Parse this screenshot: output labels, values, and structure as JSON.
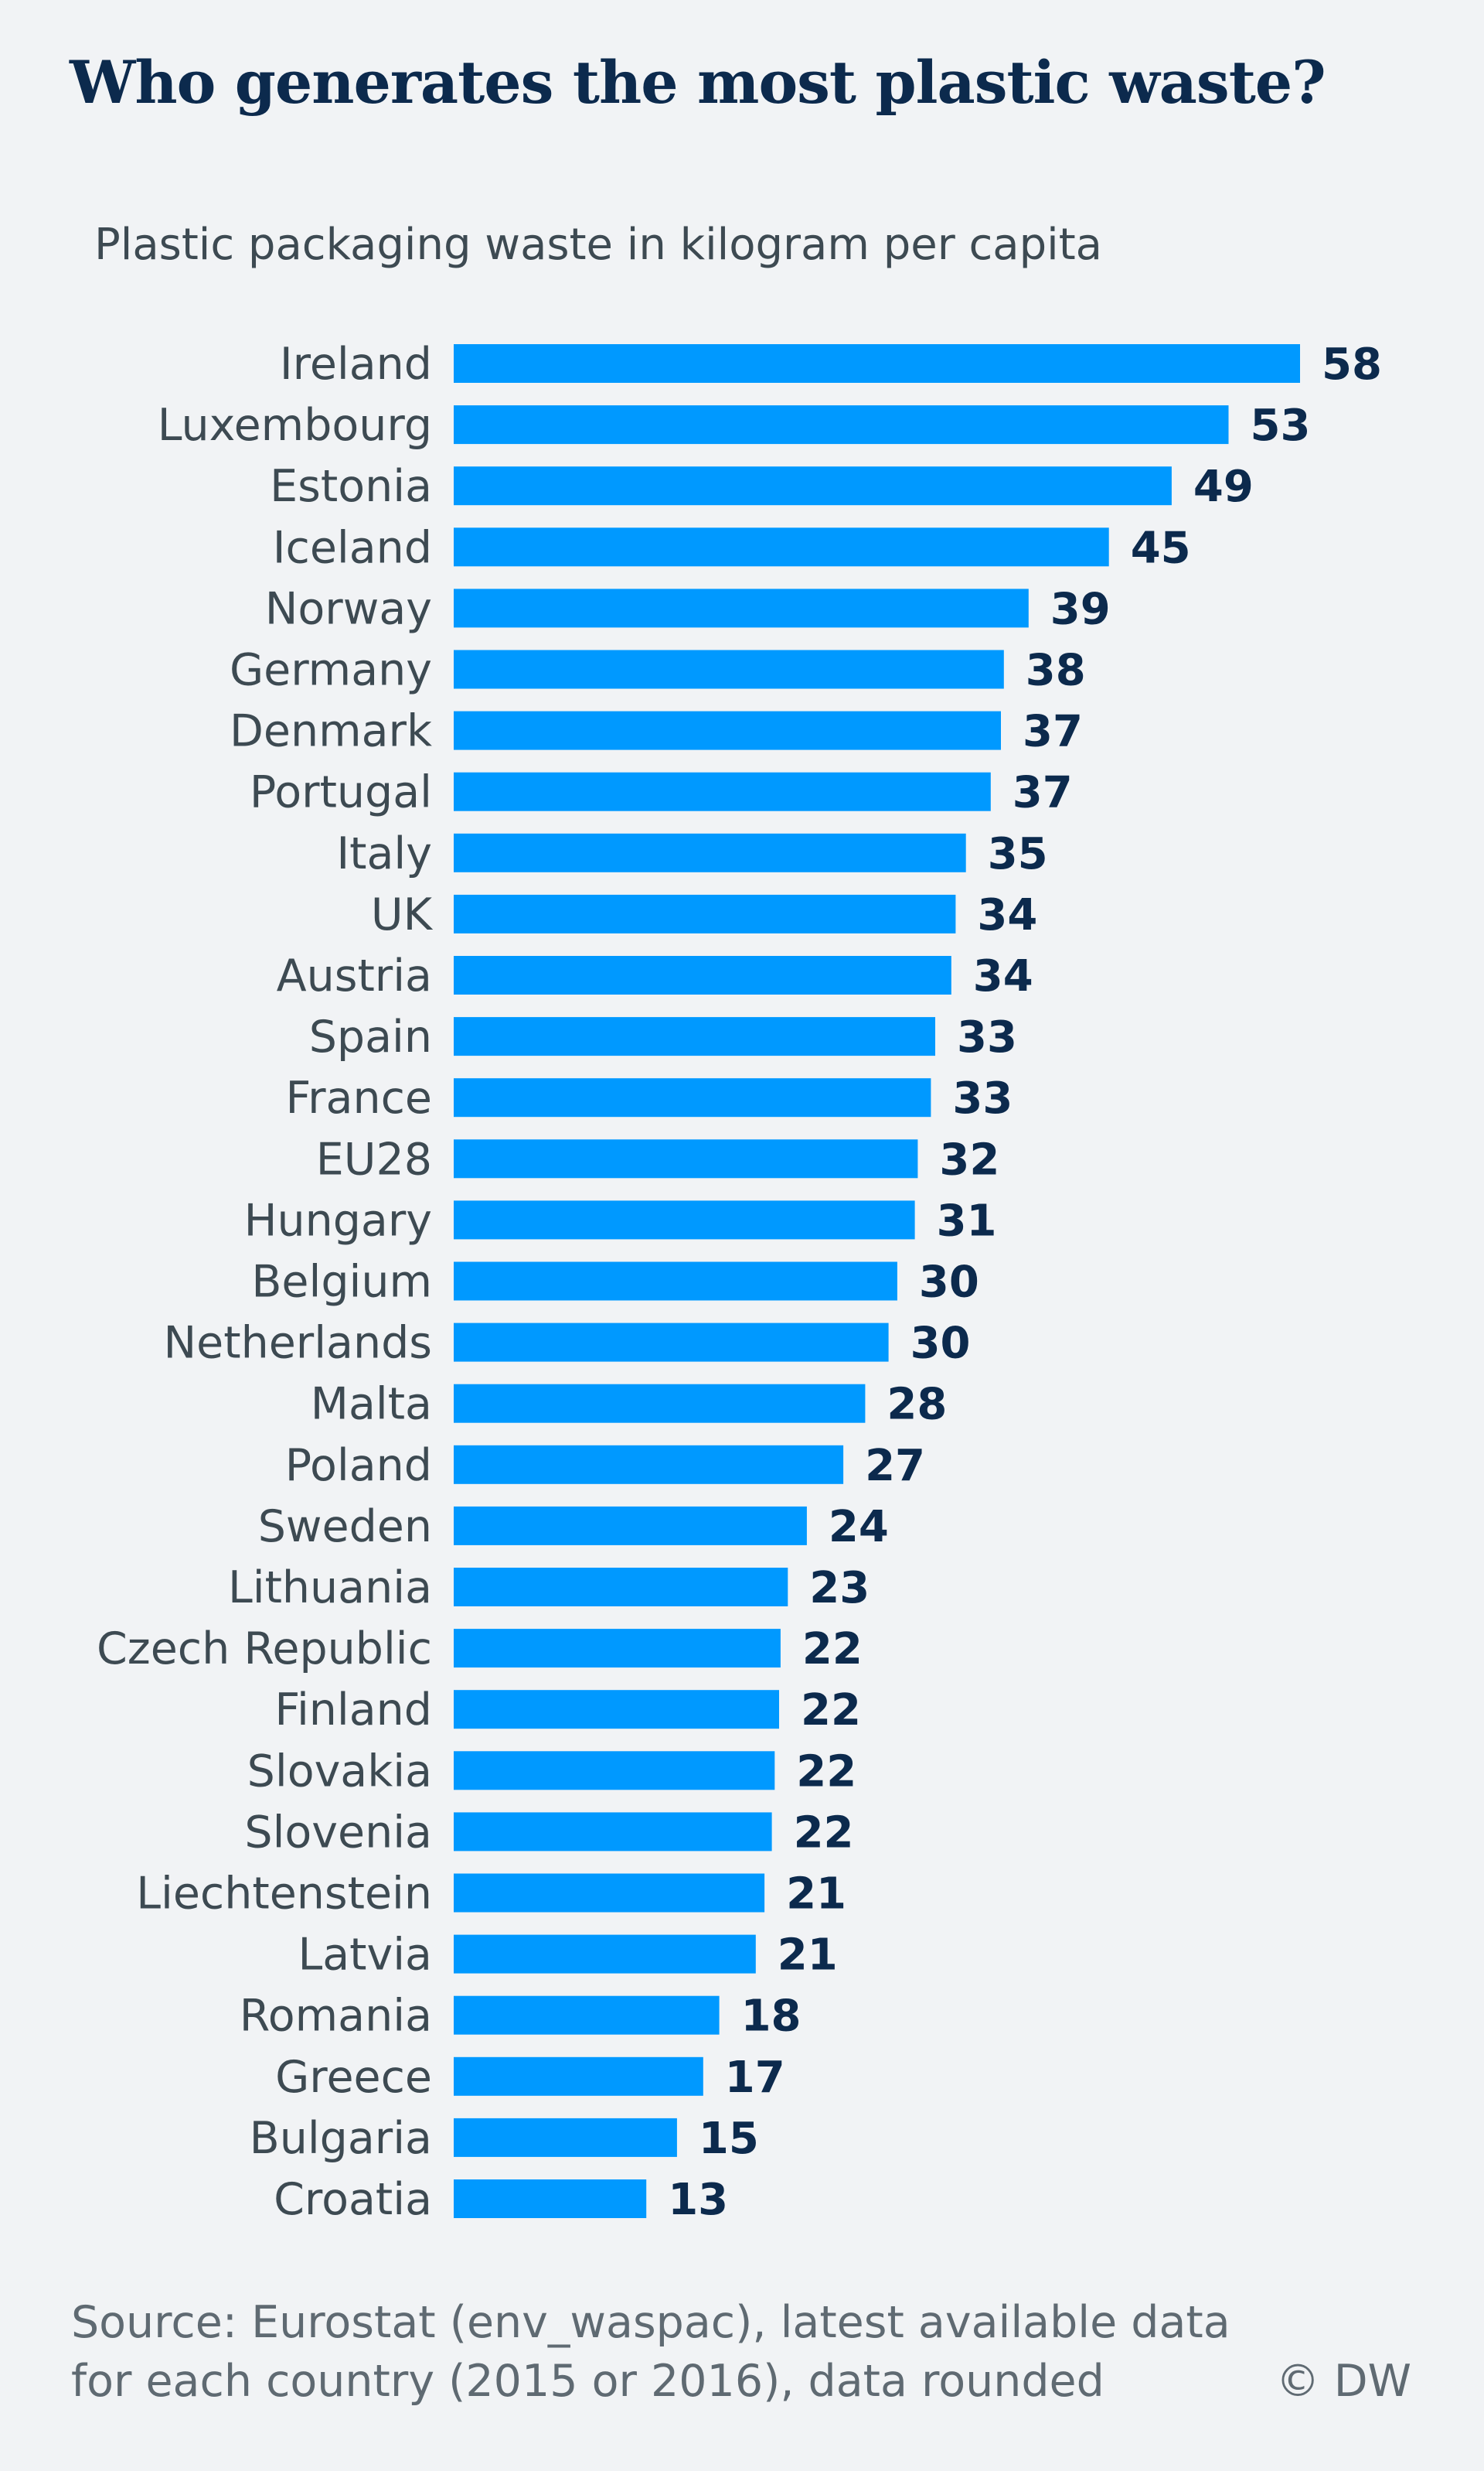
{
  "header": {
    "title": "Who generates the most plastic waste?",
    "subtitle": "Plastic packaging waste in kilogram per capita"
  },
  "footer": {
    "source_line1": "Source: Eurostat (env_waspac), latest available data",
    "source_line2": "for each country (2015 or 2016), data rounded",
    "credit": "© DW"
  },
  "colors": {
    "bar": "#0099ff",
    "title": "#0c2a4d",
    "value_label": "#0c2a4d",
    "category_label": "#3d4a52",
    "background": "#f1f3f5"
  },
  "chart_data": {
    "type": "bar",
    "orientation": "horizontal",
    "title": "Who generates the most plastic waste?",
    "subtitle": "Plastic packaging waste in kilogram per capita",
    "xlabel": "",
    "ylabel": "",
    "grid": false,
    "legend": "none",
    "categories": [
      "Ireland",
      "Luxembourg",
      "Estonia",
      "Iceland",
      "Norway",
      "Germany",
      "Denmark",
      "Portugal",
      "Italy",
      "UK",
      "Austria",
      "Spain",
      "France",
      "EU28",
      "Hungary",
      "Belgium",
      "Netherlands",
      "Malta",
      "Poland",
      "Sweden",
      "Lithuania",
      "Czech Republic",
      "Finland",
      "Slovakia",
      "Slovenia",
      "Liechtenstein",
      "Latvia",
      "Romania",
      "Greece",
      "Bulgaria",
      "Croatia"
    ],
    "values": [
      58,
      53,
      49,
      45,
      39,
      38,
      37,
      37,
      35,
      34,
      34,
      33,
      33,
      32,
      31,
      30,
      30,
      28,
      27,
      24,
      23,
      22,
      22,
      22,
      22,
      21,
      21,
      18,
      17,
      15,
      13
    ],
    "plot_values": [
      58.0,
      53.1,
      49.2,
      44.9,
      39.4,
      37.7,
      37.5,
      36.8,
      35.1,
      34.4,
      34.1,
      33.0,
      32.7,
      31.8,
      31.6,
      30.4,
      29.8,
      28.2,
      26.7,
      24.2,
      22.9,
      22.4,
      22.3,
      22.0,
      21.8,
      21.3,
      20.7,
      18.2,
      17.1,
      15.3,
      13.2
    ],
    "xlim": [
      0,
      58
    ]
  }
}
